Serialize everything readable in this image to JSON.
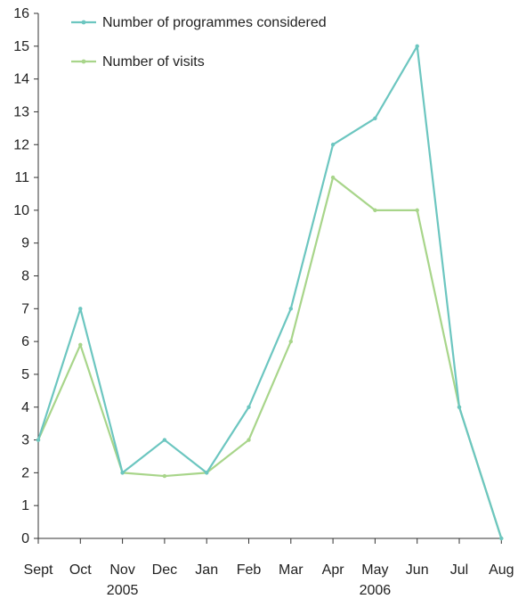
{
  "chart_data": {
    "type": "line",
    "title": "",
    "xlabel": "",
    "ylabel": "",
    "categories": [
      "Sept",
      "Oct",
      "Nov",
      "Dec",
      "Jan",
      "Feb",
      "Mar",
      "Apr",
      "May",
      "Jun",
      "Jul",
      "Aug"
    ],
    "year_labels": [
      {
        "label": "2005",
        "category": "Nov"
      },
      {
        "label": "2006",
        "category": "May"
      }
    ],
    "ylim": [
      0,
      16
    ],
    "yticks": [
      0,
      1,
      2,
      3,
      4,
      5,
      6,
      7,
      8,
      9,
      10,
      11,
      12,
      13,
      14,
      15,
      16
    ],
    "grid": false,
    "legend_position": "top-left",
    "series": [
      {
        "name": "Number of programmes considered",
        "color": "#6cc6c0",
        "values": [
          3,
          7,
          2,
          3,
          2,
          4,
          7,
          12,
          12.8,
          15,
          4,
          0
        ]
      },
      {
        "name": "Number of visits",
        "color": "#a8d58a",
        "values": [
          3,
          5.9,
          2,
          1.9,
          2,
          3,
          6,
          11,
          10,
          10,
          4,
          0
        ]
      }
    ]
  }
}
